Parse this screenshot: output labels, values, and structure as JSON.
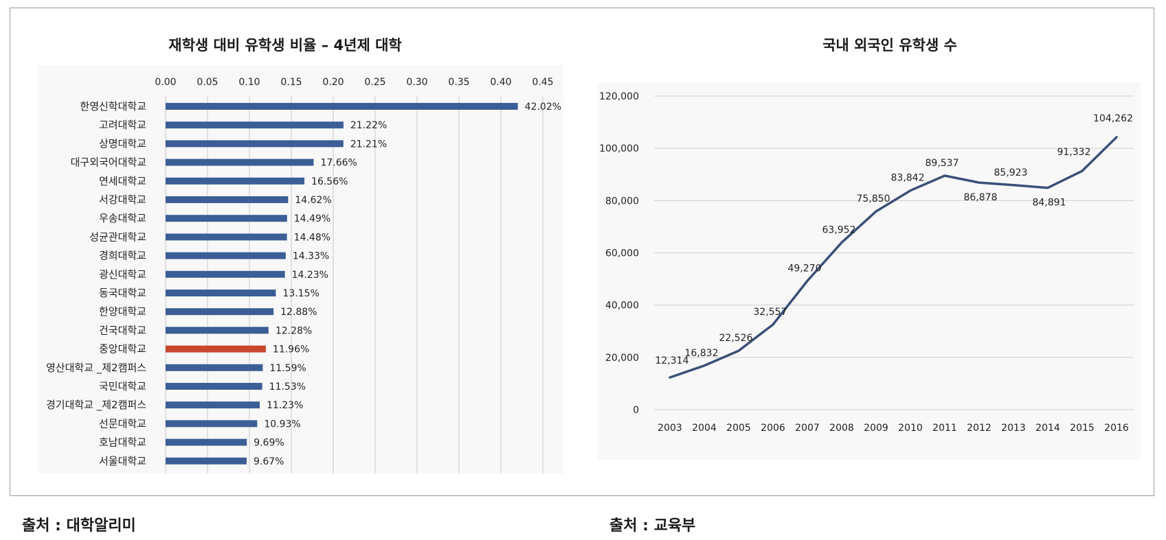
{
  "chart_data": [
    {
      "type": "bar",
      "orientation": "horizontal",
      "title": "재학생 대비 유학생 비율 – 4년제 대학",
      "xlim": [
        0,
        0.45
      ],
      "xticks": [
        "0.00",
        "0.05",
        "0.10",
        "0.15",
        "0.20",
        "0.25",
        "0.30",
        "0.35",
        "0.40",
        "0.45"
      ],
      "grid": true,
      "bar_color": "#3b5e96",
      "highlight_color": "#c8482e",
      "highlight_index": 13,
      "categories": [
        "한영신학대학교",
        "고려대학교",
        "상명대학교",
        "대구외국어대학교",
        "연세대학교",
        "서강대학교",
        "우송대학교",
        "성균관대학교",
        "경희대학교",
        "광신대학교",
        "동국대학교",
        "한양대학교",
        "건국대학교",
        "중앙대학교",
        "영산대학교 _제2캠퍼스",
        "국민대학교",
        "경기대학교 _제2캠퍼스",
        "선문대학교",
        "호남대학교",
        "서울대학교"
      ],
      "values": [
        0.4202,
        0.2122,
        0.2121,
        0.1766,
        0.1656,
        0.1462,
        0.1449,
        0.1448,
        0.1433,
        0.1423,
        0.1315,
        0.1288,
        0.1228,
        0.1196,
        0.1159,
        0.1153,
        0.1123,
        0.1093,
        0.0969,
        0.0967
      ],
      "labels": [
        "42.02%",
        "21.22%",
        "21.21%",
        "17.66%",
        "16.56%",
        "14.62%",
        "14.49%",
        "14.48%",
        "14.33%",
        "14.23%",
        "13.15%",
        "12.88%",
        "12.28%",
        "11.96%",
        "11.59%",
        "11.53%",
        "11.23%",
        "10.93%",
        "9.69%",
        "9.67%"
      ]
    },
    {
      "type": "line",
      "title": "국내 외국인 유학생 수",
      "x": [
        "2003",
        "2004",
        "2005",
        "2006",
        "2007",
        "2008",
        "2009",
        "2010",
        "2011",
        "2012",
        "2013",
        "2014",
        "2015",
        "2016"
      ],
      "values": [
        12314,
        16832,
        22526,
        32557,
        49270,
        63952,
        75850,
        83842,
        89537,
        86878,
        85923,
        84891,
        91332,
        104262
      ],
      "labels": [
        "12,314",
        "16,832",
        "22,526",
        "32,557",
        "49,270",
        "63,952",
        "75,850",
        "83,842",
        "89,537",
        "86,878",
        "85,923",
        "84,891",
        "91,332",
        "104,262"
      ],
      "ylim": [
        0,
        120000
      ],
      "yticks": [
        "0",
        "20,000",
        "40,000",
        "60,000",
        "80,000",
        "100,000",
        "120,000"
      ],
      "grid": true,
      "line_color": "#3b5078"
    }
  ],
  "sources": {
    "left": "출처 : 대학알리미",
    "right": "출처 : 교육부"
  }
}
